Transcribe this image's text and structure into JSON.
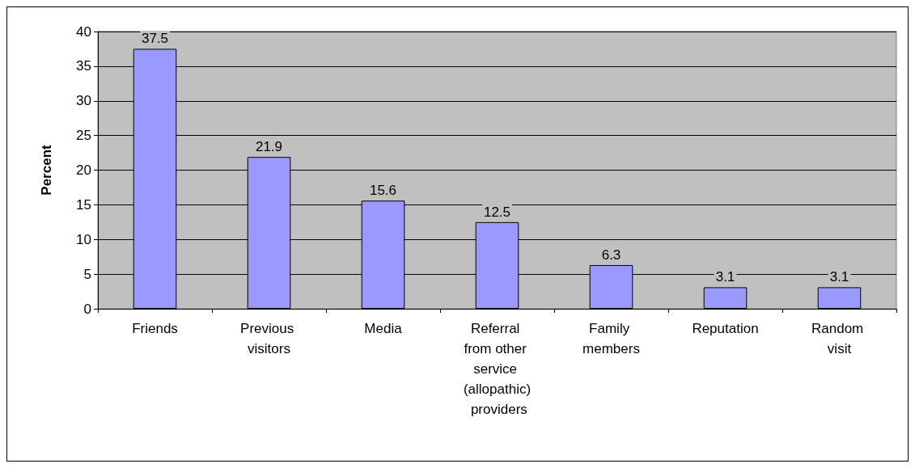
{
  "chart_data": {
    "type": "bar",
    "ylabel": "Percent",
    "categories": [
      "Friends",
      "Previous visitors",
      "Media",
      "Referral from other service (allopathic) providers",
      "Family members",
      "Reputation",
      "Random visit"
    ],
    "values": [
      37.5,
      21.9,
      15.6,
      12.5,
      6.3,
      3.1,
      3.1
    ],
    "color": "#9999ff",
    "ylim": [
      0,
      40
    ],
    "yticks": [
      0,
      5,
      10,
      15,
      20,
      25,
      30,
      35,
      40
    ],
    "grid": "y",
    "data_labels": true
  }
}
